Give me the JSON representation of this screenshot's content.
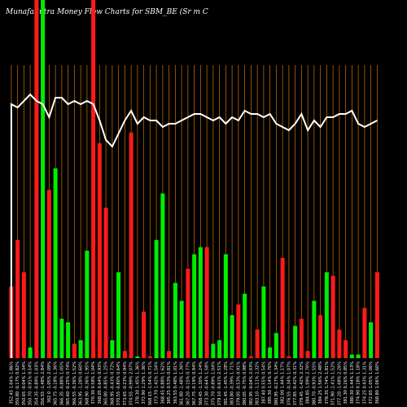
{
  "chart_data": {
    "type": "bar",
    "title": "MunafaSutra Money Flow Charts for SBM_BE (Sr m C",
    "xlabel": "",
    "ylabel": "",
    "grid": true,
    "colors": {
      "background": "#000000",
      "up": "#00ee00",
      "down": "#ff1a1a",
      "line": "#ffffff",
      "grid": "#b8650a"
    },
    "categories": [
      "352.45 1.04% 1.86%",
      "350.80 -0.17% 0.82%",
      "350.65 -0.04% 1.34%",
      "350.70 -0.91% 0.54%",
      "354.35 -0.89% 1.03%",
      "356.55 -1.48% 2.84%",
      "362.0 -1.05% 2.09%",
      "365.75 -0.18% 1.36%",
      "366.35 -0.88% 1.05%",
      "365.60 -0.25% 0.74%",
      "366.55 -0.36% 1.52%",
      "363.95 -1.28% 0.60%",
      "368.90 -0.36% 1.95%",
      "370.30 0.58% 1.04%",
      "368.05 0.64% 0.93%",
      "365.80 -0.85% 1.25%",
      "368.95 -0.43% 0.72%",
      "370.55 -0.80% 0.64%",
      "373.65 -0.23% 0.94%",
      "374.55 -0.99% 2.07%",
      "378.30 1.45% 1.36%",
      "372.90 1.29% 1.36%",
      "368.15 -1.54% 0.71%",
      "373.70 1.42% 1.54%",
      "368.45 0.88% 1.62%",
      "365.25 0.53% 0.81%",
      "363.55 0.48% 1.01%",
      "361.80 -1.48% 1.36%",
      "367.20 -0.15% 0.77%",
      "367.75 -0.19% 0.94%",
      "368.45 -1.30% 1.24%",
      "373.30 -0.64% 1.58%",
      "375.70 -0.89% 1.04%",
      "379.10 -0.61% 2.51%",
      "381.45 -1.45% 1.28%",
      "383.80 -0.39% 1.71%",
      "379.05 -0.53% 0.91%",
      "380.05 -0.75% 0.98%",
      "382.95 -0.04% 2.03%",
      "383.10 -1.11% 2.32%",
      "387.40 0.55% 0.54%",
      "385.30 1.14% 0.76%",
      "380.95 -0.27% 1.34%",
      "382.00 1.44% 1.17%",
      "376.55 -0.34% 1.07%",
      "377.85 -0.42% 0.31%",
      "379.45 -1.42% 2.32%",
      "384.85 1.09% 2.70%",
      "380.70 -0.93% 1.55%",
      "384.25 1.56% 2.48%",
      "378.35 1.74% 1.81%",
      "371.90 -1.41% 1.52%",
      "377.20 -1.08% 2.26%",
      "381.30 0.26% 0.85%",
      "380.30 1.44% 1.13%",
      "374.90 0.18% 1.18%",
      "374.25 0.43% 1.31%",
      "372.65 1.05% 1.06%",
      "368.80 1.06% 1.60%"
    ],
    "bar_colors": [
      "down",
      "down",
      "down",
      "up",
      "down",
      "up",
      "down",
      "up",
      "up",
      "up",
      "down",
      "up",
      "up",
      "down",
      "down",
      "down",
      "up",
      "up",
      "down",
      "down",
      "up",
      "down",
      "down",
      "up",
      "up",
      "down",
      "up",
      "up",
      "down",
      "up",
      "up",
      "down",
      "up",
      "up",
      "up",
      "up",
      "down",
      "up",
      "down",
      "down",
      "up",
      "up",
      "up",
      "down",
      "down",
      "up",
      "down",
      "down",
      "up",
      "down",
      "up",
      "down",
      "down",
      "down",
      "up",
      "up",
      "down",
      "up",
      "down"
    ],
    "values": [
      20,
      33,
      24,
      3,
      100,
      100,
      47,
      53,
      11,
      10,
      4,
      5,
      30,
      100,
      60,
      42,
      5,
      24,
      2,
      63,
      0.5,
      13,
      0.5,
      33,
      46,
      2,
      21,
      16,
      25,
      29,
      31,
      31,
      4,
      5,
      29,
      12,
      15,
      18,
      0.5,
      8,
      20,
      3,
      7,
      28,
      0.5,
      9,
      11,
      2,
      16,
      12,
      24,
      23,
      8,
      5,
      1,
      1,
      14,
      10,
      24
    ],
    "line_values": [
      78,
      77,
      79,
      81,
      79,
      78,
      74,
      80,
      80,
      78,
      79,
      78,
      79,
      78,
      73,
      67,
      65,
      69,
      73,
      76,
      72,
      74,
      73,
      73,
      71,
      72,
      72,
      73,
      74,
      75,
      75,
      74,
      73,
      74,
      72,
      74,
      73,
      76,
      75,
      75,
      74,
      75,
      72,
      71,
      70,
      72,
      75,
      70,
      73,
      71,
      74,
      74,
      75,
      75,
      76,
      72,
      71,
      72,
      73
    ],
    "ylim": [
      0,
      100
    ],
    "line_ylim": [
      0,
      100
    ]
  }
}
